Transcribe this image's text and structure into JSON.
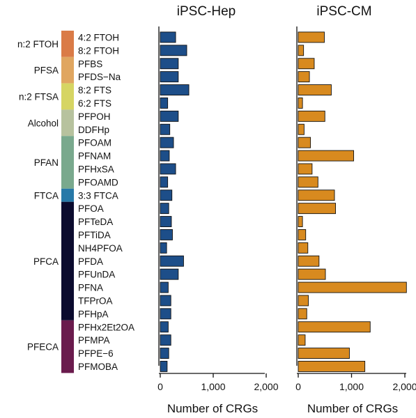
{
  "chart_data": {
    "type": "bar",
    "orientation": "horizontal",
    "categories": [
      "4:2 FTOH",
      "8:2 FTOH",
      "PFBS",
      "PFDS−Na",
      "8:2 FTS",
      "6:2 FTS",
      "PFPOH",
      "DDFHp",
      "PFOAM",
      "PFNAM",
      "PFHxSA",
      "PFOAMD",
      "3:3 FTCA",
      "PFOA",
      "PFTeDA",
      "PFTiDA",
      "NH4PFOA",
      "PFDA",
      "PFUnDA",
      "PFNA",
      "TFPrOA",
      "PFHpA",
      "PFHx2Et2OA",
      "PFMPA",
      "PFPE−6",
      "PFMOBA"
    ],
    "groups": [
      {
        "label": "n:2 FTOH",
        "count": 2,
        "color": "#DA7B47"
      },
      {
        "label": "PFSA",
        "count": 2,
        "color": "#E0A660"
      },
      {
        "label": "n:2 FTSA",
        "count": 2,
        "color": "#D6D563"
      },
      {
        "label": "Alcohol",
        "count": 2,
        "color": "#B7C29E"
      },
      {
        "label": "PFAN",
        "count": 4,
        "color": "#79A98D"
      },
      {
        "label": "FTCA",
        "count": 1,
        "color": "#2779A8"
      },
      {
        "label": "PFCA",
        "count": 9,
        "color": "#0B0B2E"
      },
      {
        "label": "PFECA",
        "count": 4,
        "color": "#6A1B4D"
      }
    ],
    "series": [
      {
        "name": "iPSC-Hep",
        "color": "#1D4E89",
        "values": [
          290,
          500,
          340,
          340,
          540,
          140,
          340,
          180,
          250,
          170,
          290,
          140,
          220,
          160,
          210,
          230,
          120,
          440,
          340,
          150,
          200,
          200,
          150,
          200,
          160,
          130
        ]
      },
      {
        "name": "iPSC-CM",
        "color": "#D88A1F",
        "values": [
          490,
          100,
          300,
          210,
          620,
          80,
          500,
          110,
          230,
          1040,
          260,
          370,
          680,
          700,
          80,
          140,
          180,
          390,
          510,
          2030,
          190,
          160,
          1350,
          130,
          960,
          1250
        ]
      }
    ],
    "xlabel": "Number of CRGs",
    "xlim": [
      0,
      2000
    ],
    "xticks": [
      0,
      1000,
      2000
    ],
    "xtick_labels": [
      "0",
      "1,000",
      "2,000"
    ]
  }
}
